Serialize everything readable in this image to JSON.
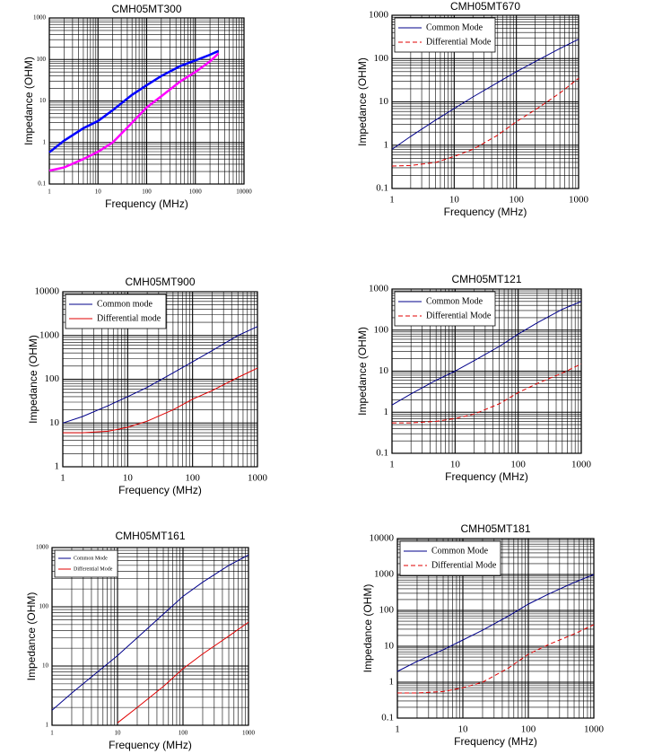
{
  "chart_data": [
    {
      "type": "line",
      "title": "CMH05MT300",
      "x_label": "Frequency (MHz)",
      "y_label": "Impedance (OHM)",
      "log_x": true,
      "log_y": true,
      "grid": true,
      "xlim": [
        1,
        10000
      ],
      "ylim": [
        0.1,
        1000
      ],
      "xticks": [
        1,
        10,
        100,
        1000,
        10000
      ],
      "yticks": [
        0.1,
        1,
        10,
        100,
        1000
      ],
      "x": [
        1,
        2,
        5,
        10,
        20,
        50,
        100,
        200,
        500,
        1000,
        2000,
        3000
      ],
      "series": [
        {
          "color": "#0000ff",
          "values": [
            0.58,
            1.1,
            2.2,
            3.3,
            6,
            14,
            24,
            40,
            70,
            95,
            130,
            160
          ]
        },
        {
          "color": "#ff00ff",
          "values": [
            0.21,
            0.25,
            0.4,
            0.6,
            1.0,
            3,
            7,
            13,
            30,
            50,
            90,
            140
          ]
        }
      ]
    },
    {
      "type": "line",
      "title": "CMH05MT670",
      "x_label": "Frequency (MHz)",
      "y_label": "Impedance (OHM)",
      "log_x": true,
      "log_y": true,
      "grid": true,
      "legend": "upper left",
      "xlim": [
        1,
        1000
      ],
      "ylim": [
        0.1,
        1000
      ],
      "xticks": [
        1,
        10,
        100,
        1000
      ],
      "yticks": [
        0.1,
        1,
        10,
        100,
        1000
      ],
      "x": [
        1,
        2,
        5,
        10,
        20,
        50,
        100,
        200,
        500,
        1000
      ],
      "series": [
        {
          "name": "Common Mode",
          "color": "#00008b",
          "values": [
            0.8,
            1.6,
            3.8,
            7,
            13,
            28,
            50,
            85,
            170,
            280
          ]
        },
        {
          "name": "Differential Mode",
          "color": "#e00000",
          "dashed": true,
          "values": [
            0.33,
            0.34,
            0.4,
            0.55,
            0.8,
            1.7,
            3.5,
            6.5,
            16,
            35
          ]
        }
      ]
    },
    {
      "type": "line",
      "title": "CMH05MT900",
      "x_label": "Frequency (MHz)",
      "y_label": "Impedance (OHM)",
      "log_x": true,
      "log_y": true,
      "grid": true,
      "legend": "upper left",
      "xlim": [
        1,
        1000
      ],
      "ylim": [
        1,
        10000
      ],
      "xticks": [
        1,
        10,
        100,
        1000
      ],
      "yticks": [
        1,
        10,
        100,
        1000,
        10000
      ],
      "x": [
        1,
        2,
        5,
        10,
        20,
        50,
        100,
        200,
        500,
        1000
      ],
      "series": [
        {
          "name": "Common mode",
          "color": "#00008b",
          "values": [
            10,
            14,
            25,
            40,
            65,
            140,
            250,
            450,
            1000,
            1600
          ]
        },
        {
          "name": "Differential mode",
          "color": "#e00000",
          "values": [
            6,
            6,
            6.5,
            8,
            11,
            20,
            35,
            55,
            110,
            180
          ]
        }
      ]
    },
    {
      "type": "line",
      "title": "CMH05MT121",
      "x_label": "Frequency (MHz)",
      "y_label": "Impedance (OHM)",
      "log_x": true,
      "log_y": true,
      "grid": true,
      "legend": "upper left",
      "xlim": [
        1,
        1000
      ],
      "ylim": [
        0.1,
        1000
      ],
      "xticks": [
        1,
        10,
        100,
        1000
      ],
      "yticks": [
        0.1,
        1,
        10,
        100,
        1000
      ],
      "x": [
        1,
        2,
        5,
        10,
        20,
        50,
        100,
        200,
        500,
        1000
      ],
      "series": [
        {
          "name": "Common Mode",
          "color": "#00008b",
          "values": [
            1.5,
            2.8,
            6,
            10,
            18,
            40,
            80,
            150,
            320,
            500
          ]
        },
        {
          "name": "Differential Mode",
          "color": "#e00000",
          "dashed": true,
          "values": [
            0.55,
            0.55,
            0.6,
            0.7,
            0.9,
            1.6,
            3,
            5,
            9,
            15
          ]
        }
      ]
    },
    {
      "type": "line",
      "title": "CMH05MT161",
      "x_label": "Frequency (MHz)",
      "y_label": "Impedance (OHM)",
      "log_x": true,
      "log_y": true,
      "grid": true,
      "legend": "upper left",
      "xlim": [
        1,
        1000
      ],
      "ylim": [
        1,
        1000
      ],
      "xticks": [
        1,
        10,
        100,
        1000
      ],
      "yticks": [
        1,
        10,
        100,
        1000
      ],
      "x": [
        1,
        2,
        5,
        10,
        20,
        50,
        100,
        200,
        500,
        1000
      ],
      "series": [
        {
          "name": "Common Mode",
          "color": "#00008b",
          "values": [
            1.8,
            3.5,
            8,
            15,
            30,
            75,
            150,
            260,
            500,
            750
          ]
        },
        {
          "name": "Differential Mode",
          "color": "#e00000",
          "values": [
            null,
            null,
            null,
            1.1,
            2,
            4.5,
            9,
            16,
            32,
            55
          ]
        }
      ]
    },
    {
      "type": "line",
      "title": "CMH05MT181",
      "x_label": "Frequency (MHz)",
      "y_label": "Impedance (OHM)",
      "log_x": true,
      "log_y": true,
      "grid": true,
      "legend": "upper left",
      "xlim": [
        1,
        1000
      ],
      "ylim": [
        0.1,
        10000
      ],
      "xticks": [
        1,
        10,
        100,
        1000
      ],
      "yticks": [
        0.1,
        1,
        10,
        100,
        1000,
        10000
      ],
      "x": [
        1,
        2,
        5,
        10,
        20,
        50,
        100,
        200,
        500,
        1000
      ],
      "series": [
        {
          "name": "Common Mode",
          "color": "#00008b",
          "values": [
            2,
            3.8,
            8,
            15,
            28,
            70,
            150,
            280,
            600,
            1000
          ]
        },
        {
          "name": "Differential Mode",
          "color": "#e00000",
          "dashed": true,
          "values": [
            0.5,
            0.5,
            0.55,
            0.7,
            1,
            2.5,
            6,
            11,
            22,
            40
          ]
        }
      ]
    }
  ]
}
